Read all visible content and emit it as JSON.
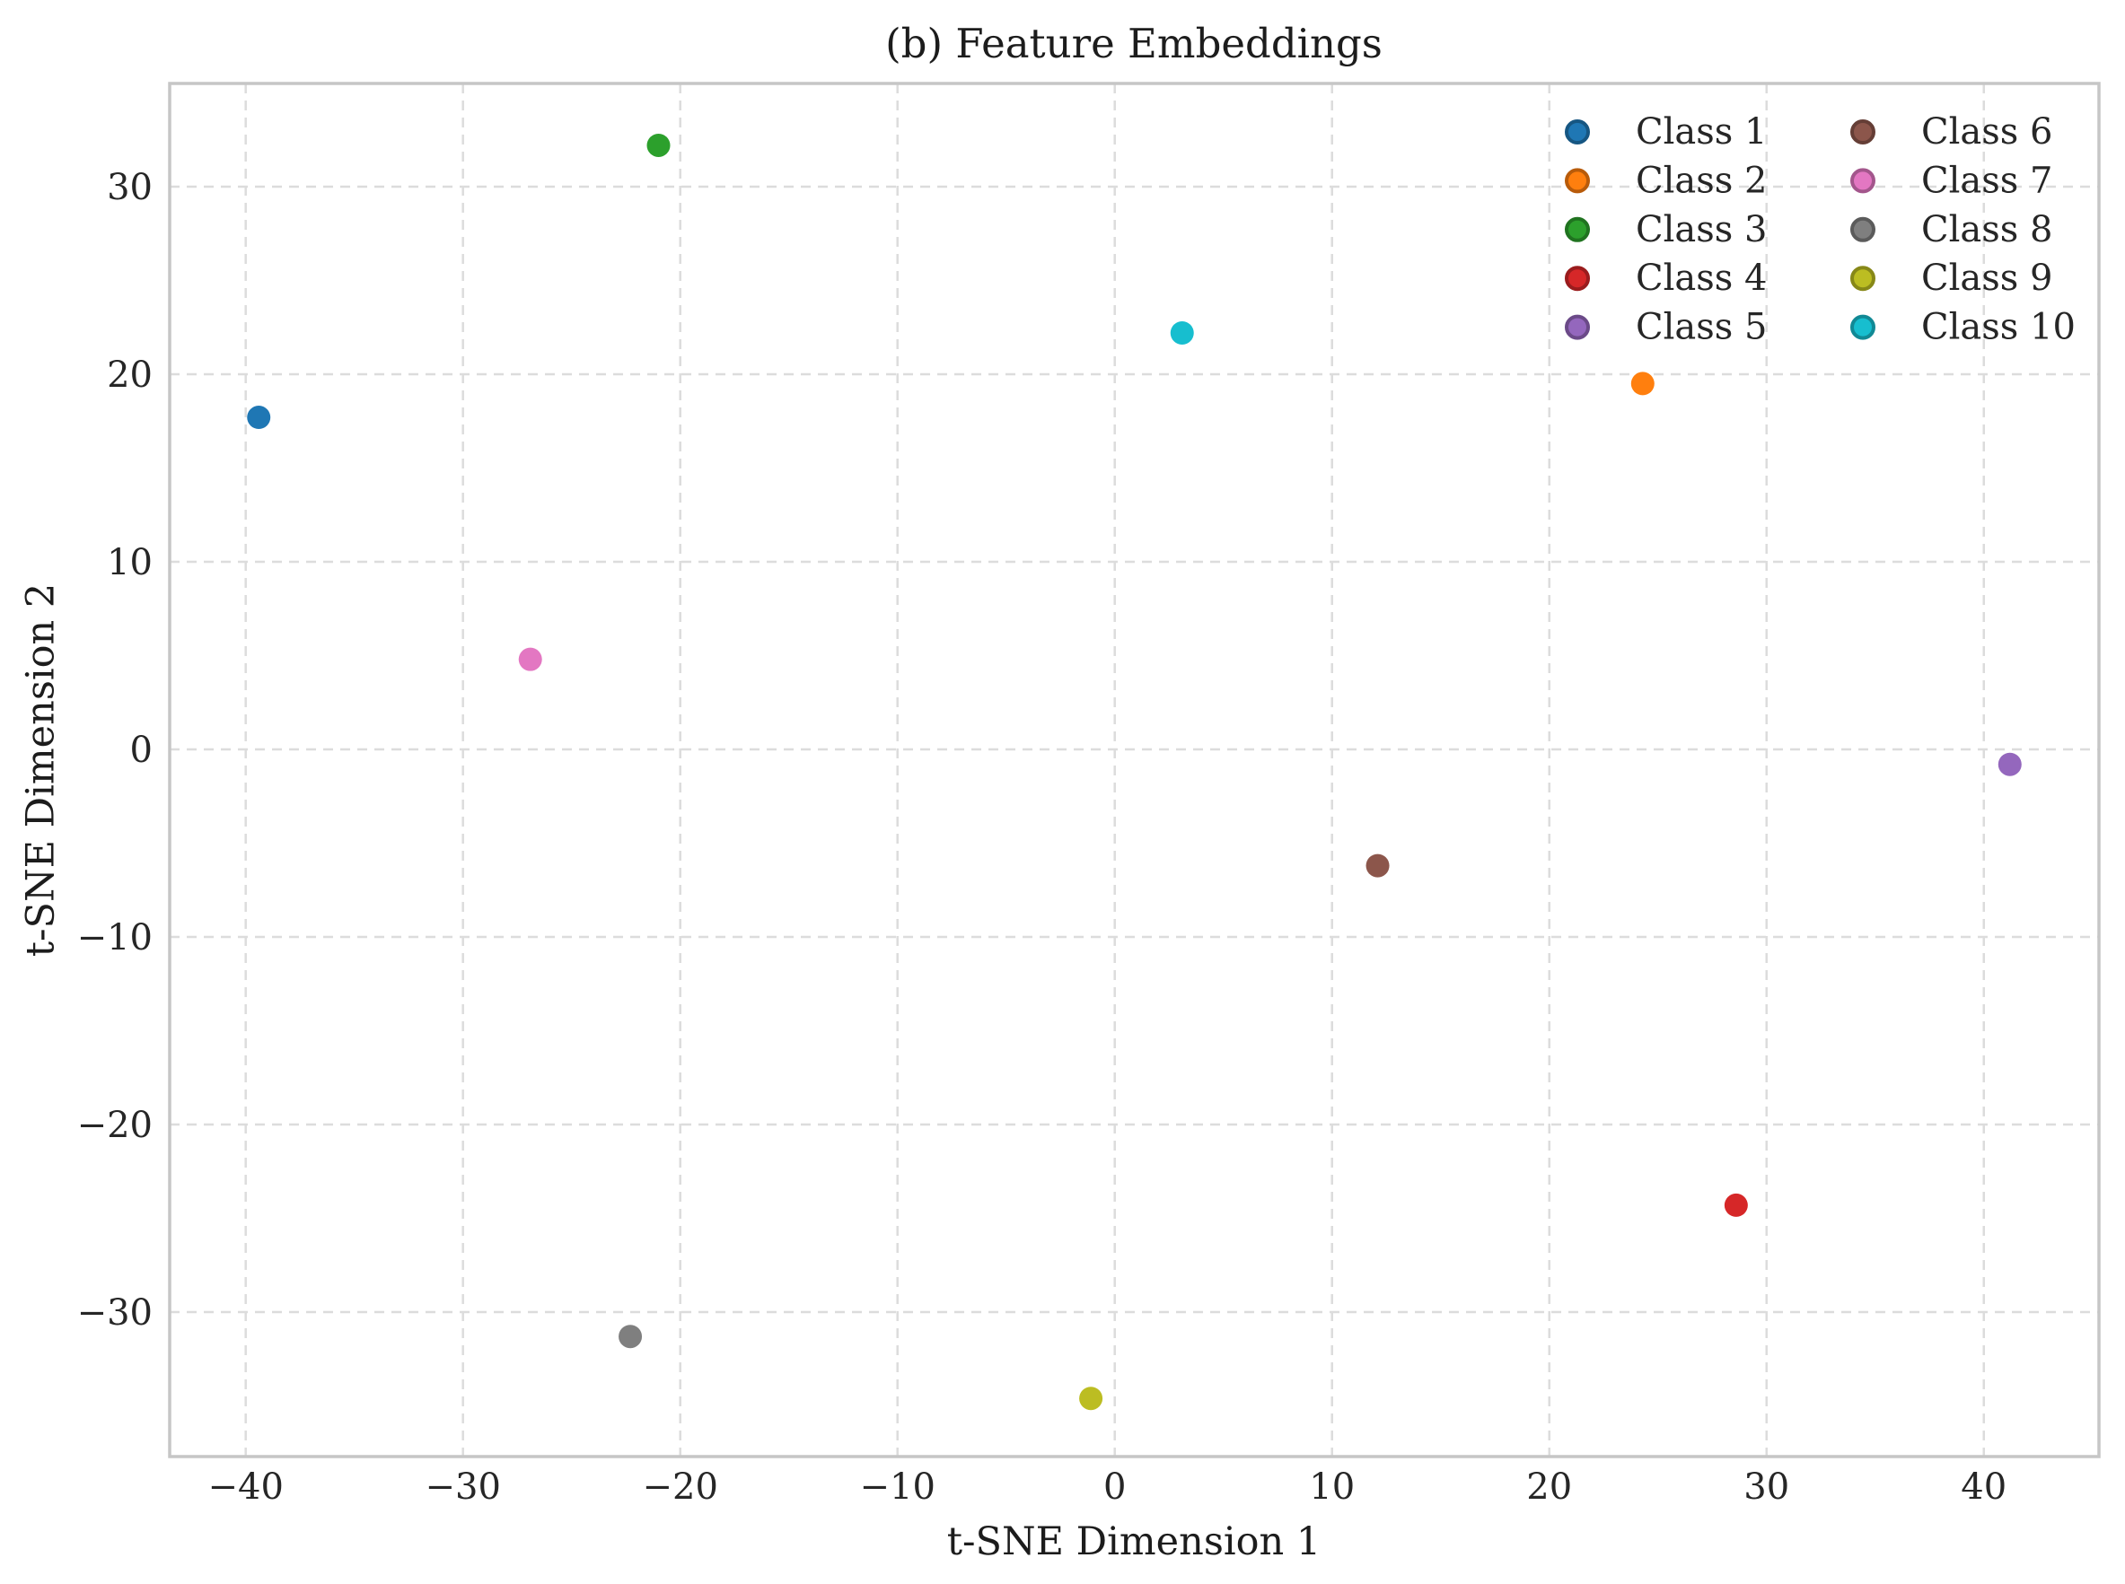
{
  "figure": {
    "title": "(b) Feature Embeddings"
  },
  "chart_data": {
    "type": "scatter",
    "title": "(b) Feature Embeddings",
    "xlabel": "t-SNE Dimension 1",
    "ylabel": "t-SNE Dimension 2",
    "xlim": [
      -43.5,
      45.3
    ],
    "ylim": [
      -37.7,
      35.5
    ],
    "xticks": [
      -40,
      -30,
      -20,
      -10,
      0,
      10,
      20,
      30,
      40
    ],
    "yticks": [
      30,
      20,
      10,
      0,
      -10,
      -20,
      -30
    ],
    "grid": true,
    "grid_style": "dashed",
    "legend": {
      "position": "upper-right",
      "columns": 2,
      "frame": false,
      "entries": [
        "Class 1",
        "Class 2",
        "Class 3",
        "Class 4",
        "Class 5",
        "Class 6",
        "Class 7",
        "Class 8",
        "Class 9",
        "Class 10"
      ]
    },
    "series": [
      {
        "name": "Class 1",
        "color": "#1f77b4",
        "points": [
          [
            -39.4,
            17.7
          ]
        ]
      },
      {
        "name": "Class 2",
        "color": "#ff7f0e",
        "points": [
          [
            24.3,
            19.5
          ]
        ]
      },
      {
        "name": "Class 3",
        "color": "#2ca02c",
        "points": [
          [
            -21.0,
            32.2
          ]
        ]
      },
      {
        "name": "Class 4",
        "color": "#d62728",
        "points": [
          [
            28.6,
            -24.3
          ]
        ]
      },
      {
        "name": "Class 5",
        "color": "#9467bd",
        "points": [
          [
            41.2,
            -0.8
          ]
        ]
      },
      {
        "name": "Class 6",
        "color": "#8c564b",
        "points": [
          [
            12.1,
            -6.2
          ]
        ]
      },
      {
        "name": "Class 7",
        "color": "#e377c2",
        "points": [
          [
            -26.9,
            4.8
          ]
        ]
      },
      {
        "name": "Class 8",
        "color": "#7f7f7f",
        "points": [
          [
            -22.3,
            -31.3
          ]
        ]
      },
      {
        "name": "Class 9",
        "color": "#bcbd22",
        "points": [
          [
            -1.1,
            -34.6
          ]
        ]
      },
      {
        "name": "Class 10",
        "color": "#17becf",
        "points": [
          [
            3.1,
            22.2
          ]
        ]
      }
    ]
  },
  "style": {
    "background": "#ffffff",
    "grid_color": "#dcdcdc",
    "spine_color": "#c6c6c6",
    "text_color": "#262626",
    "marker_radius": 13,
    "legend_marker_radius": 12
  }
}
